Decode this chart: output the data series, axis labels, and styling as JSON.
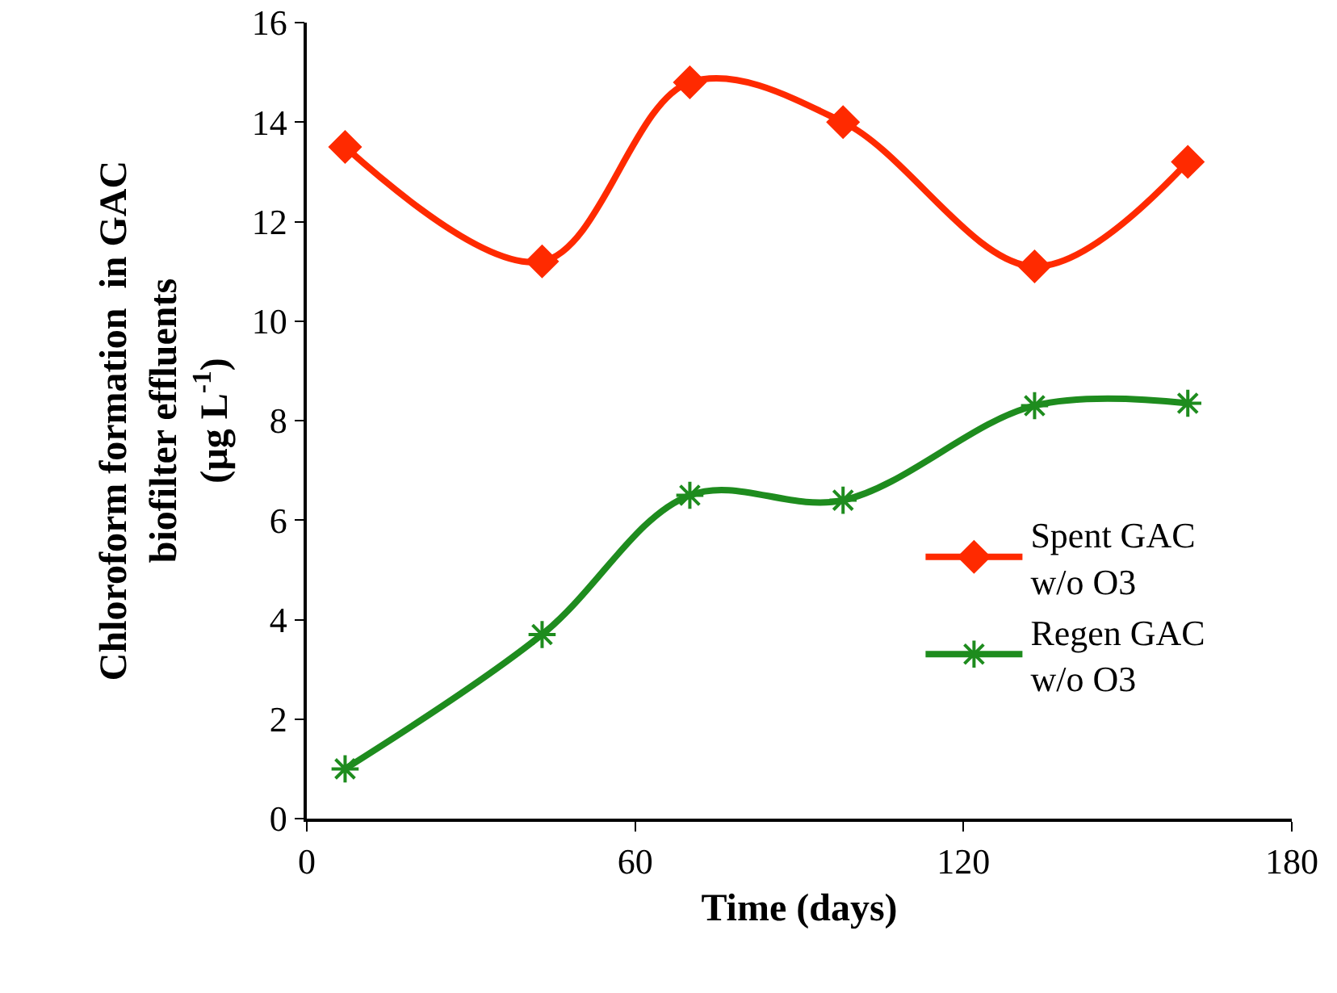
{
  "chart_data": {
    "type": "line",
    "xlabel": "Time (days)",
    "ylabel": "Chloroform formation  in GAC\nbiofilter effluents\n(µg L$^{-1}$)",
    "x": [
      7,
      43,
      70,
      98,
      133,
      161
    ],
    "series": [
      {
        "name": "Spent GAC\nw/o O3",
        "color": "#ff2a00",
        "marker": "diamond",
        "values": [
          13.5,
          11.2,
          14.8,
          14.0,
          11.1,
          13.2
        ]
      },
      {
        "name": "Regen GAC\nw/o O3",
        "color": "#1e8c1e",
        "marker": "cross",
        "values": [
          1.0,
          3.7,
          6.5,
          6.4,
          8.3,
          8.35
        ]
      }
    ],
    "xlim": [
      0,
      180
    ],
    "xticks": [
      0,
      60,
      120,
      180
    ],
    "ylim": [
      0,
      16
    ],
    "yticks": [
      0,
      2,
      4,
      6,
      8,
      10,
      12,
      14,
      16
    ],
    "grid": false,
    "legend": "right",
    "line_style": "solid"
  }
}
